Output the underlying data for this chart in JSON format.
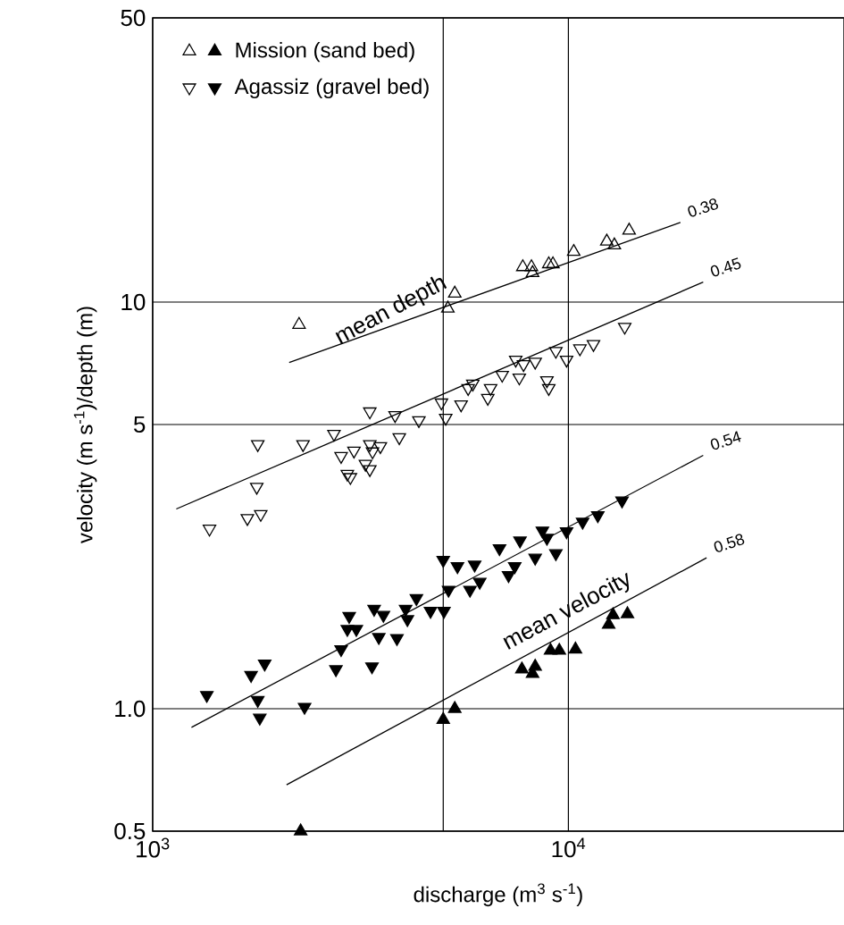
{
  "chart_data": {
    "type": "scatter",
    "xlabel": "discharge (m$^{3}$ s$^{-1}$)",
    "ylabel": "velocity (m s$^{-1}$)/depth (m)",
    "log": "xy",
    "grid": true,
    "legend": "top left",
    "xlim": [
      1000,
      46000
    ],
    "ylim": [
      0.5,
      50
    ],
    "xticks": [
      {
        "value": 1000,
        "label": "10$^{3}$"
      },
      {
        "value": 5000,
        "label": null
      },
      {
        "value": 10000,
        "label": "10$^{4}$"
      }
    ],
    "yticks": [
      0.5,
      {
        "value": 1,
        "label": "1.0"
      },
      5,
      10,
      50
    ],
    "series": [
      {
        "marker": "triangle-open",
        "color": "#000000",
        "x": [
          2250,
          5130,
          5330,
          7770,
          8150,
          8200,
          8970,
          9180,
          10300,
          12370,
          12900,
          14000
        ],
        "values": [
          8.8,
          9.65,
          10.5,
          12.2,
          12.2,
          11.8,
          12.4,
          12.4,
          13.3,
          14.1,
          13.8,
          15.0
        ]
      },
      {
        "marker": "triangle-down-open",
        "color": "#000000",
        "x": [
          1370,
          1690,
          1820,
          1780,
          1790,
          2300,
          2730,
          2840,
          2940,
          2990,
          3050,
          3250,
          3330,
          3330,
          3380,
          3530,
          3330,
          3830,
          3920,
          4370,
          4950,
          5070,
          5520,
          5740,
          5890,
          6400,
          6500,
          6930,
          7470,
          7620,
          7800,
          8320,
          8880,
          8970,
          9330,
          9900,
          10660,
          11490,
          13660
        ],
        "values": [
          2.77,
          2.94,
          3.01,
          3.51,
          4.47,
          4.47,
          4.74,
          4.18,
          3.78,
          3.71,
          4.31,
          4.0,
          4.47,
          3.88,
          4.29,
          4.42,
          5.38,
          5.27,
          4.65,
          5.12,
          5.66,
          5.19,
          5.6,
          6.14,
          6.3,
          5.81,
          6.14,
          6.62,
          7.21,
          6.52,
          7.03,
          7.13,
          6.42,
          6.14,
          7.58,
          7.21,
          7.69,
          7.88,
          8.69
        ]
      },
      {
        "name": "Mission (sand bed)",
        "marker": "triangle",
        "color": "#000000",
        "x": [
          2270,
          5000,
          5330,
          7730,
          8200,
          8320,
          9060,
          9510,
          10400,
          12500,
          12800,
          13870
        ],
        "values": [
          0.5,
          0.94,
          1.0,
          1.25,
          1.22,
          1.27,
          1.39,
          1.39,
          1.4,
          1.61,
          1.7,
          1.71
        ]
      },
      {
        "name": "Agassiz (gravel bed)",
        "marker": "triangle-down",
        "color": "#000000",
        "x": [
          1350,
          1725,
          1790,
          1810,
          1860,
          2320,
          2760,
          2840,
          2940,
          2970,
          3090,
          3370,
          3410,
          3500,
          3590,
          3870,
          4060,
          4100,
          4310,
          4660,
          5000,
          5020,
          5150,
          5410,
          5800,
          5950,
          6120,
          6830,
          7180,
          7430,
          7650,
          8320,
          8660,
          8880,
          9330,
          9900,
          10820,
          11770,
          13460
        ],
        "values": [
          1.08,
          1.21,
          1.05,
          0.95,
          1.29,
          1.01,
          1.25,
          1.4,
          1.57,
          1.69,
          1.57,
          1.27,
          1.76,
          1.5,
          1.7,
          1.49,
          1.76,
          1.66,
          1.87,
          1.74,
          2.32,
          1.74,
          1.96,
          2.24,
          1.96,
          2.26,
          2.05,
          2.48,
          2.13,
          2.24,
          2.59,
          2.35,
          2.74,
          2.63,
          2.41,
          2.73,
          2.88,
          2.99,
          3.25
        ]
      },
      {
        "type": "line",
        "color": "#000000",
        "x": [
          2130,
          18600
        ],
        "values": [
          7.1,
          15.7
        ]
      },
      {
        "type": "line",
        "color": "#000000",
        "x": [
          1140,
          21100
        ],
        "values": [
          3.1,
          11.2
        ]
      },
      {
        "type": "line",
        "color": "#000000",
        "x": [
          1240,
          21100
        ],
        "values": [
          0.9,
          4.2
        ]
      },
      {
        "type": "line",
        "color": "#000000",
        "x": [
          2100,
          21500
        ],
        "values": [
          0.65,
          2.35
        ]
      }
    ],
    "annotations": [
      "mean depth",
      "mean velocity",
      {
        "text": "0.38",
        "x": 18600,
        "y": 15.7
      },
      {
        "text": "0.45",
        "x": 21100,
        "y": 11.2
      },
      {
        "text": "0.54",
        "x": 21100,
        "y": 4.2
      },
      {
        "text": "0.58",
        "x": 21500,
        "y": 2.35
      }
    ]
  }
}
